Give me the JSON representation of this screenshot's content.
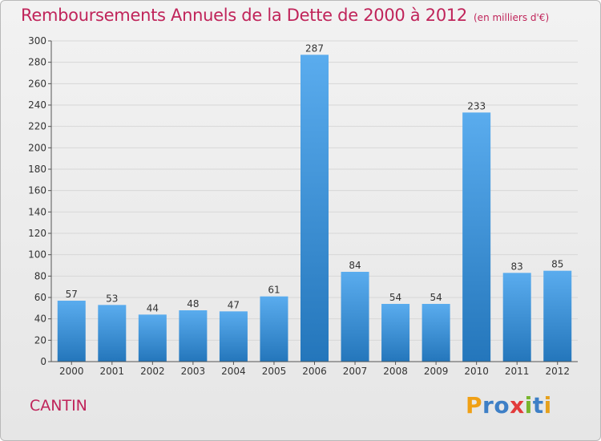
{
  "title": "Remboursements Annuels de la Dette de 2000 à 2012",
  "subtitle": "(en milliers d'€)",
  "commune": "CANTIN",
  "logo": {
    "text": "Proxiti",
    "letters": [
      "P",
      "r",
      "o",
      "x",
      "i",
      "t",
      "i"
    ],
    "colors": [
      "#f0a015",
      "#3d7fc6",
      "#3d7fc6",
      "#e23a3a",
      "#78b52d",
      "#3d7fc6",
      "#e6a11d"
    ]
  },
  "colors": {
    "title": "#c0245a",
    "bar_light": "#5aacee",
    "bar_dark": "#2476bb",
    "grid": "#d7d7d7"
  },
  "chart_data": {
    "type": "bar",
    "categories": [
      "2000",
      "2001",
      "2002",
      "2003",
      "2004",
      "2005",
      "2006",
      "2007",
      "2008",
      "2009",
      "2010",
      "2011",
      "2012"
    ],
    "values": [
      57,
      53,
      44,
      48,
      47,
      61,
      287,
      84,
      54,
      54,
      233,
      83,
      85
    ],
    "ylim": [
      0,
      300
    ],
    "yticks": [
      0,
      20,
      40,
      60,
      80,
      100,
      120,
      140,
      160,
      180,
      200,
      220,
      240,
      260,
      280,
      300
    ],
    "grid": true,
    "legend": "none"
  }
}
